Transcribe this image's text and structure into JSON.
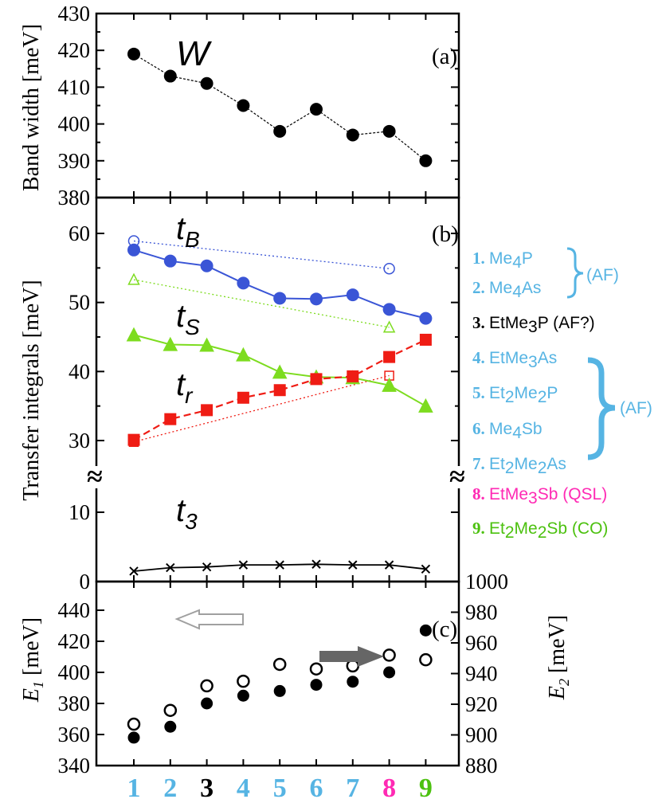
{
  "colors": {
    "blue": "#3a55d6",
    "green": "#7ddc1f",
    "red": "#ef1c14",
    "cyan": "#56b4e3",
    "black": "#000000",
    "magenta": "#ff2ab4",
    "legend_green": "#4cc10f",
    "gray_arrow": "#666666",
    "hollow_arrow": "#a0a0a0"
  },
  "chart_data": [
    {
      "id": "a",
      "type": "line",
      "panel_label": "(a)",
      "ylabel": "Band width [meV]",
      "ylim": [
        380,
        430
      ],
      "yticks": [
        "380",
        "390",
        "400",
        "410",
        "420",
        "430"
      ],
      "x": [
        1,
        2,
        3,
        4,
        5,
        6,
        7,
        8,
        9
      ],
      "series": [
        {
          "name": "W",
          "values": [
            419,
            413,
            411,
            405,
            398,
            404,
            397,
            398,
            390
          ]
        }
      ]
    },
    {
      "id": "b",
      "type": "line",
      "panel_label": "(b)",
      "ylabel": "Transfer integrals [meV]",
      "ylim_upper": [
        25,
        63
      ],
      "ylim_lower": [
        0,
        15
      ],
      "yticks_upper": [
        "30",
        "40",
        "50",
        "60"
      ],
      "yticks_lower": [
        "0",
        "10"
      ],
      "axis_break": "≈",
      "x": [
        1,
        2,
        3,
        4,
        5,
        6,
        7,
        8,
        9
      ],
      "series": [
        {
          "name": "tB",
          "values": [
            57.6,
            56.0,
            55.3,
            52.8,
            50.6,
            50.5,
            51.1,
            49.0,
            47.7
          ]
        },
        {
          "name": "tS",
          "values": [
            45.3,
            43.9,
            43.8,
            42.4,
            39.9,
            39.2,
            39.1,
            38.0,
            35.0
          ]
        },
        {
          "name": "tr",
          "values": [
            30.1,
            33.1,
            34.4,
            36.2,
            37.3,
            38.9,
            39.3,
            42.1,
            44.6
          ]
        },
        {
          "name": "t3",
          "values": [
            1.5,
            2.0,
            2.1,
            2.4,
            2.4,
            2.5,
            2.4,
            2.4,
            1.8
          ]
        }
      ],
      "reference_series": [
        {
          "name": "tB",
          "x": [
            1,
            8
          ],
          "values": [
            58.9,
            54.9
          ]
        },
        {
          "name": "tS",
          "x": [
            1,
            8
          ],
          "values": [
            53.3,
            46.4
          ]
        },
        {
          "name": "tr",
          "x": [
            1,
            8
          ],
          "values": [
            29.8,
            39.4
          ]
        }
      ]
    },
    {
      "id": "c",
      "type": "scatter",
      "panel_label": "(c)",
      "ylabel_left": "E",
      "ylabel_left_sub": "1",
      "ylabel_left_unit": " [meV]",
      "ylabel_right": "E",
      "ylabel_right_sub": "2",
      "ylabel_right_unit": " [meV]",
      "ylim_left": [
        340,
        455
      ],
      "ylim_right": [
        880,
        1000
      ],
      "yticks_left": [
        "340",
        "360",
        "380",
        "400",
        "420",
        "440"
      ],
      "yticks_right": [
        "880",
        "900",
        "920",
        "940",
        "960",
        "980",
        "1000"
      ],
      "x": [
        1,
        2,
        3,
        4,
        5,
        6,
        7,
        8,
        9
      ],
      "series": [
        {
          "name": "E1",
          "axis": "left",
          "values": [
            358,
            365,
            380,
            385,
            388,
            392,
            394,
            400,
            427
          ]
        },
        {
          "name": "E2",
          "axis": "right",
          "values": [
            907,
            916,
            932,
            935,
            946,
            943,
            945,
            952,
            949
          ]
        }
      ]
    }
  ],
  "xaxis": {
    "categories": [
      "1",
      "2",
      "3",
      "4",
      "5",
      "6",
      "7",
      "8",
      "9"
    ],
    "category_colors": [
      "#56b4e3",
      "#56b4e3",
      "#000000",
      "#56b4e3",
      "#56b4e3",
      "#56b4e3",
      "#56b4e3",
      "#ff2ab4",
      "#4cc10f"
    ]
  },
  "legend": {
    "items": [
      {
        "num": "1.",
        "base": "Me",
        "sub": "4",
        "rest": "P",
        "note": "",
        "color": "#56b4e3"
      },
      {
        "num": "2.",
        "base": "Me",
        "sub": "4",
        "rest": "As",
        "note": "",
        "color": "#56b4e3"
      },
      {
        "num": "3.",
        "base": "EtMe",
        "sub": "3",
        "rest": "P",
        "note": " (AF?)",
        "color": "#000000"
      },
      {
        "num": "4.",
        "base": "EtMe",
        "sub": "3",
        "rest": "As",
        "note": "",
        "color": "#56b4e3"
      },
      {
        "num": "5.",
        "base": "Et",
        "sub": "2",
        "rest": "Me",
        "sub2": "2",
        "rest2": "P",
        "note": "",
        "color": "#56b4e3"
      },
      {
        "num": "6.",
        "base": "Me",
        "sub": "4",
        "rest": "Sb",
        "note": "",
        "color": "#56b4e3"
      },
      {
        "num": "7.",
        "base": "Et",
        "sub": "2",
        "rest": "Me",
        "sub2": "2",
        "rest2": "As",
        "note": "",
        "color": "#56b4e3"
      },
      {
        "num": "8.",
        "base": "EtMe",
        "sub": "3",
        "rest": "Sb",
        "note": " (QSL)",
        "color": "#ff2ab4"
      },
      {
        "num": "9.",
        "base": "Et",
        "sub": "2",
        "rest": "Me",
        "sub2": "2",
        "rest2": "Sb",
        "note": " (CO)",
        "color": "#4cc10f"
      }
    ],
    "brace_af_small": "(AF)",
    "brace_af_large": "(AF)"
  }
}
